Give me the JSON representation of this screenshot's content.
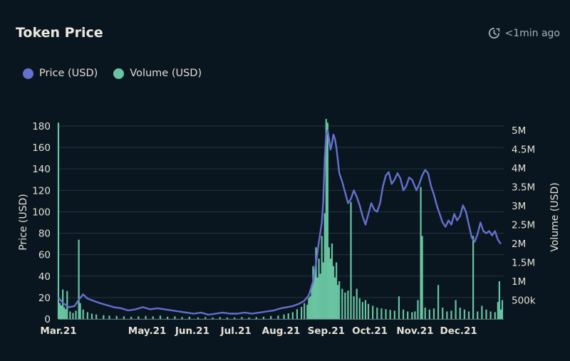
{
  "header": {
    "title": "Token Price",
    "updated_label": "<1min ago",
    "updated_icon": "refresh-clock-icon"
  },
  "colors": {
    "background": "#091620",
    "price": "#6670cf",
    "volume": "#69c4a1",
    "grid": "#263440"
  },
  "chart_data": {
    "type": "bar+line",
    "legend": [
      {
        "key": "price",
        "label": "Price (USD)",
        "color": "#6670cf"
      },
      {
        "key": "volume",
        "label": "Volume (USD)",
        "color": "#69c4a1"
      }
    ],
    "legend_position": "top-left",
    "grid": true,
    "y_left": {
      "label": "Price (USD)",
      "ticks": [
        0,
        20,
        40,
        60,
        80,
        100,
        120,
        140,
        160,
        180
      ],
      "tick_labels": [
        "0",
        "20",
        "40",
        "60",
        "80",
        "100",
        "120",
        "140",
        "160",
        "180"
      ],
      "range": [
        0,
        180
      ]
    },
    "y_right": {
      "label": "Volume (USD)",
      "ticks": [
        500000,
        1000000,
        1500000,
        2000000,
        2500000,
        3000000,
        3500000,
        4000000,
        4500000,
        5000000
      ],
      "tick_labels": [
        "500k",
        "1M",
        "1.5M",
        "2M",
        "2.5M",
        "3M",
        "3.5M",
        "4M",
        "4.5M",
        "5M"
      ],
      "range": [
        0,
        5300000
      ]
    },
    "x_axis": {
      "range": [
        "2021-03-01",
        "2021-12-31"
      ],
      "ticks": [
        {
          "label": "Mar.21",
          "date": "2021-03-01"
        },
        {
          "label": "May.21",
          "date": "2021-05-01"
        },
        {
          "label": "Jun.21",
          "date": "2021-06-01"
        },
        {
          "label": "Jul.21",
          "date": "2021-07-01"
        },
        {
          "label": "Aug.21",
          "date": "2021-08-01"
        },
        {
          "label": "Sep.21",
          "date": "2021-09-01"
        },
        {
          "label": "Oct.21",
          "date": "2021-10-01"
        },
        {
          "label": "Nov.21",
          "date": "2021-11-01"
        },
        {
          "label": "Dec.21",
          "date": "2021-12-01"
        }
      ]
    },
    "price_series": {
      "name": "Price (USD)",
      "points": [
        [
          "2021-03-01",
          20
        ],
        [
          "2021-03-04",
          15
        ],
        [
          "2021-03-08",
          11
        ],
        [
          "2021-03-12",
          12
        ],
        [
          "2021-03-15",
          18
        ],
        [
          "2021-03-18",
          23
        ],
        [
          "2021-03-21",
          19
        ],
        [
          "2021-03-25",
          17
        ],
        [
          "2021-03-29",
          15
        ],
        [
          "2021-04-03",
          13
        ],
        [
          "2021-04-08",
          11
        ],
        [
          "2021-04-13",
          10
        ],
        [
          "2021-04-18",
          8
        ],
        [
          "2021-04-23",
          9
        ],
        [
          "2021-04-28",
          11
        ],
        [
          "2021-05-03",
          9
        ],
        [
          "2021-05-08",
          10
        ],
        [
          "2021-05-13",
          9
        ],
        [
          "2021-05-18",
          8
        ],
        [
          "2021-05-23",
          7
        ],
        [
          "2021-05-28",
          6
        ],
        [
          "2021-06-02",
          5
        ],
        [
          "2021-06-07",
          6
        ],
        [
          "2021-06-12",
          4
        ],
        [
          "2021-06-17",
          5
        ],
        [
          "2021-06-22",
          6
        ],
        [
          "2021-06-27",
          5
        ],
        [
          "2021-07-02",
          5
        ],
        [
          "2021-07-07",
          6
        ],
        [
          "2021-07-12",
          5
        ],
        [
          "2021-07-17",
          6
        ],
        [
          "2021-07-22",
          7
        ],
        [
          "2021-07-27",
          8
        ],
        [
          "2021-08-01",
          10
        ],
        [
          "2021-08-05",
          11
        ],
        [
          "2021-08-09",
          12
        ],
        [
          "2021-08-13",
          14
        ],
        [
          "2021-08-17",
          17
        ],
        [
          "2021-08-20",
          22
        ],
        [
          "2021-08-23",
          35
        ],
        [
          "2021-08-25",
          52
        ],
        [
          "2021-08-27",
          72
        ],
        [
          "2021-08-29",
          90
        ],
        [
          "2021-08-30",
          110
        ],
        [
          "2021-08-31",
          150
        ],
        [
          "2021-09-01",
          172
        ],
        [
          "2021-09-02",
          176
        ],
        [
          "2021-09-03",
          168
        ],
        [
          "2021-09-04",
          158
        ],
        [
          "2021-09-05",
          164
        ],
        [
          "2021-09-06",
          172
        ],
        [
          "2021-09-07",
          168
        ],
        [
          "2021-09-08",
          160
        ],
        [
          "2021-09-09",
          148
        ],
        [
          "2021-09-10",
          136
        ],
        [
          "2021-09-12",
          128
        ],
        [
          "2021-09-14",
          118
        ],
        [
          "2021-09-16",
          108
        ],
        [
          "2021-09-18",
          112
        ],
        [
          "2021-09-20",
          120
        ],
        [
          "2021-09-22",
          114
        ],
        [
          "2021-09-24",
          106
        ],
        [
          "2021-09-26",
          96
        ],
        [
          "2021-09-28",
          88
        ],
        [
          "2021-09-30",
          98
        ],
        [
          "2021-10-02",
          108
        ],
        [
          "2021-10-04",
          102
        ],
        [
          "2021-10-06",
          100
        ],
        [
          "2021-10-08",
          108
        ],
        [
          "2021-10-10",
          124
        ],
        [
          "2021-10-12",
          134
        ],
        [
          "2021-10-14",
          137
        ],
        [
          "2021-10-16",
          126
        ],
        [
          "2021-10-18",
          130
        ],
        [
          "2021-10-20",
          136
        ],
        [
          "2021-10-22",
          131
        ],
        [
          "2021-10-24",
          120
        ],
        [
          "2021-10-26",
          124
        ],
        [
          "2021-10-28",
          132
        ],
        [
          "2021-10-30",
          130
        ],
        [
          "2021-11-02",
          120
        ],
        [
          "2021-11-04",
          126
        ],
        [
          "2021-11-06",
          134
        ],
        [
          "2021-11-08",
          139
        ],
        [
          "2021-11-10",
          136
        ],
        [
          "2021-11-12",
          124
        ],
        [
          "2021-11-14",
          116
        ],
        [
          "2021-11-16",
          106
        ],
        [
          "2021-11-18",
          98
        ],
        [
          "2021-11-20",
          90
        ],
        [
          "2021-11-22",
          86
        ],
        [
          "2021-11-24",
          92
        ],
        [
          "2021-11-26",
          88
        ],
        [
          "2021-11-28",
          98
        ],
        [
          "2021-11-30",
          92
        ],
        [
          "2021-12-02",
          96
        ],
        [
          "2021-12-04",
          106
        ],
        [
          "2021-12-06",
          100
        ],
        [
          "2021-12-08",
          88
        ],
        [
          "2021-12-10",
          76
        ],
        [
          "2021-12-12",
          72
        ],
        [
          "2021-12-14",
          79
        ],
        [
          "2021-12-16",
          90
        ],
        [
          "2021-12-18",
          82
        ],
        [
          "2021-12-20",
          80
        ],
        [
          "2021-12-22",
          82
        ],
        [
          "2021-12-24",
          78
        ],
        [
          "2021-12-26",
          82
        ],
        [
          "2021-12-28",
          74
        ],
        [
          "2021-12-30",
          70
        ]
      ]
    },
    "volume_series": {
      "name": "Volume (USD)",
      "points": [
        [
          "2021-03-01",
          5200000
        ],
        [
          "2021-03-02",
          420000
        ],
        [
          "2021-03-03",
          360000
        ],
        [
          "2021-03-04",
          780000
        ],
        [
          "2021-03-05",
          310000
        ],
        [
          "2021-03-06",
          260000
        ],
        [
          "2021-03-07",
          740000
        ],
        [
          "2021-03-09",
          200000
        ],
        [
          "2021-03-11",
          160000
        ],
        [
          "2021-03-13",
          220000
        ],
        [
          "2021-03-15",
          2100000
        ],
        [
          "2021-03-16",
          420000
        ],
        [
          "2021-03-18",
          250000
        ],
        [
          "2021-03-21",
          180000
        ],
        [
          "2021-03-24",
          140000
        ],
        [
          "2021-03-27",
          120000
        ],
        [
          "2021-04-01",
          100000
        ],
        [
          "2021-04-05",
          90000
        ],
        [
          "2021-04-10",
          80000
        ],
        [
          "2021-04-15",
          70000
        ],
        [
          "2021-04-20",
          60000
        ],
        [
          "2021-04-25",
          70000
        ],
        [
          "2021-04-30",
          80000
        ],
        [
          "2021-05-05",
          70000
        ],
        [
          "2021-05-10",
          90000
        ],
        [
          "2021-05-15",
          60000
        ],
        [
          "2021-05-20",
          70000
        ],
        [
          "2021-05-25",
          50000
        ],
        [
          "2021-05-30",
          60000
        ],
        [
          "2021-06-05",
          40000
        ],
        [
          "2021-06-10",
          50000
        ],
        [
          "2021-06-15",
          40000
        ],
        [
          "2021-06-20",
          50000
        ],
        [
          "2021-06-25",
          40000
        ],
        [
          "2021-06-30",
          40000
        ],
        [
          "2021-07-05",
          50000
        ],
        [
          "2021-07-10",
          40000
        ],
        [
          "2021-07-15",
          50000
        ],
        [
          "2021-07-20",
          60000
        ],
        [
          "2021-07-25",
          80000
        ],
        [
          "2021-07-30",
          90000
        ],
        [
          "2021-08-03",
          120000
        ],
        [
          "2021-08-06",
          150000
        ],
        [
          "2021-08-09",
          180000
        ],
        [
          "2021-08-12",
          260000
        ],
        [
          "2021-08-15",
          320000
        ],
        [
          "2021-08-17",
          420000
        ],
        [
          "2021-08-19",
          380000
        ],
        [
          "2021-08-20",
          560000
        ],
        [
          "2021-08-21",
          600000
        ],
        [
          "2021-08-22",
          900000
        ],
        [
          "2021-08-23",
          1400000
        ],
        [
          "2021-08-24",
          1300000
        ],
        [
          "2021-08-25",
          1900000
        ],
        [
          "2021-08-26",
          1100000
        ],
        [
          "2021-08-27",
          1600000
        ],
        [
          "2021-08-28",
          1200000
        ],
        [
          "2021-08-29",
          2200000
        ],
        [
          "2021-08-30",
          1500000
        ],
        [
          "2021-08-31",
          2800000
        ],
        [
          "2021-09-01",
          5300000
        ],
        [
          "2021-09-02",
          5200000
        ],
        [
          "2021-09-03",
          1900000
        ],
        [
          "2021-09-04",
          1600000
        ],
        [
          "2021-09-05",
          2000000
        ],
        [
          "2021-09-06",
          1400000
        ],
        [
          "2021-09-07",
          1100000
        ],
        [
          "2021-09-08",
          1500000
        ],
        [
          "2021-09-09",
          900000
        ],
        [
          "2021-09-10",
          1000000
        ],
        [
          "2021-09-12",
          800000
        ],
        [
          "2021-09-14",
          700000
        ],
        [
          "2021-09-16",
          750000
        ],
        [
          "2021-09-18",
          3100000
        ],
        [
          "2021-09-20",
          600000
        ],
        [
          "2021-09-22",
          800000
        ],
        [
          "2021-09-24",
          550000
        ],
        [
          "2021-09-26",
          450000
        ],
        [
          "2021-09-28",
          500000
        ],
        [
          "2021-09-30",
          400000
        ],
        [
          "2021-10-03",
          350000
        ],
        [
          "2021-10-06",
          300000
        ],
        [
          "2021-10-09",
          280000
        ],
        [
          "2021-10-12",
          260000
        ],
        [
          "2021-10-15",
          240000
        ],
        [
          "2021-10-18",
          220000
        ],
        [
          "2021-10-21",
          600000
        ],
        [
          "2021-10-24",
          250000
        ],
        [
          "2021-10-27",
          200000
        ],
        [
          "2021-10-30",
          180000
        ],
        [
          "2021-11-01",
          200000
        ],
        [
          "2021-11-03",
          500000
        ],
        [
          "2021-11-05",
          3500000
        ],
        [
          "2021-11-06",
          2200000
        ],
        [
          "2021-11-08",
          300000
        ],
        [
          "2021-11-11",
          250000
        ],
        [
          "2021-11-14",
          280000
        ],
        [
          "2021-11-17",
          900000
        ],
        [
          "2021-11-20",
          300000
        ],
        [
          "2021-11-23",
          200000
        ],
        [
          "2021-11-26",
          220000
        ],
        [
          "2021-11-29",
          500000
        ],
        [
          "2021-12-02",
          300000
        ],
        [
          "2021-12-05",
          250000
        ],
        [
          "2021-12-08",
          200000
        ],
        [
          "2021-12-11",
          2200000
        ],
        [
          "2021-12-14",
          200000
        ],
        [
          "2021-12-17",
          350000
        ],
        [
          "2021-12-20",
          250000
        ],
        [
          "2021-12-23",
          200000
        ],
        [
          "2021-12-26",
          180000
        ],
        [
          "2021-12-28",
          450000
        ],
        [
          "2021-12-29",
          1000000
        ],
        [
          "2021-12-30",
          250000
        ],
        [
          "2021-12-31",
          500000
        ]
      ]
    }
  }
}
